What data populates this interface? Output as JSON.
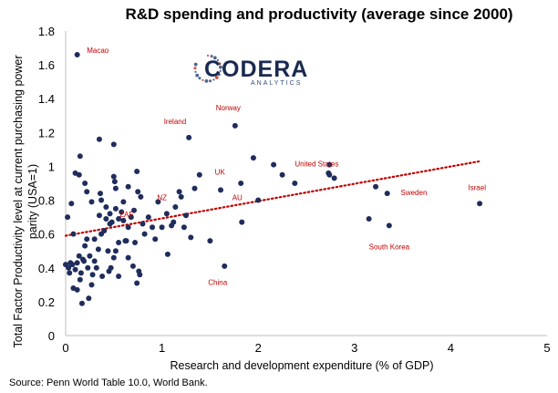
{
  "title": "R&D spending and productivity (average since 2000)",
  "source": "Source: Penn World Table 10.0, World Bank.",
  "logo": {
    "name": "CODERA",
    "sub": "ANALYTICS",
    "colors": [
      "#c0392b",
      "#2e4a7d",
      "#1a2a4f"
    ]
  },
  "chart_data": {
    "type": "scatter",
    "title": "R&D spending and productivity (average since 2000)",
    "xlabel": "Research and development expenditure (% of GDP)",
    "ylabel": "Total Factor Productivity level at current purchasing power parity (USA=1)",
    "xlim": [
      0,
      5
    ],
    "ylim": [
      0,
      1.8
    ],
    "xticks": [
      "0",
      "1",
      "2",
      "3",
      "4",
      "5"
    ],
    "yticks": [
      "0",
      "0.2",
      "0.4",
      "0.6",
      "0.8",
      "1",
      "1.2",
      "1.4",
      "1.6",
      "1.8"
    ],
    "grid": false,
    "point_color": "#1f2d5c",
    "trend_color": "#c00000",
    "trendline": {
      "style": "dotted",
      "x": [
        0,
        4.3
      ],
      "y": [
        0.59,
        1.03
      ]
    },
    "annotations": [
      {
        "text": "Macao",
        "x": 0.22,
        "y": 1.67
      },
      {
        "text": "Ireland",
        "x": 1.02,
        "y": 1.25
      },
      {
        "text": "Norway",
        "x": 1.56,
        "y": 1.33
      },
      {
        "text": "United States",
        "x": 2.38,
        "y": 1.0
      },
      {
        "text": "UK",
        "x": 1.55,
        "y": 0.95
      },
      {
        "text": "NZ",
        "x": 0.95,
        "y": 0.8
      },
      {
        "text": "AU",
        "x": 1.73,
        "y": 0.8
      },
      {
        "text": "ZAF",
        "x": 0.56,
        "y": 0.7
      },
      {
        "text": "Israel",
        "x": 4.18,
        "y": 0.86
      },
      {
        "text": "Sweden",
        "x": 3.48,
        "y": 0.83
      },
      {
        "text": "South Korea",
        "x": 3.15,
        "y": 0.51
      },
      {
        "text": "China",
        "x": 1.48,
        "y": 0.3
      }
    ],
    "points": [
      [
        0.12,
        1.66
      ],
      [
        1.28,
        1.17
      ],
      [
        1.76,
        1.24
      ],
      [
        2.74,
        1.01
      ],
      [
        2.73,
        0.96
      ],
      [
        2.74,
        0.95
      ],
      [
        2.79,
        0.93
      ],
      [
        1.61,
        0.86
      ],
      [
        4.3,
        0.78
      ],
      [
        3.34,
        0.84
      ],
      [
        3.22,
        0.88
      ],
      [
        3.15,
        0.69
      ],
      [
        3.36,
        0.65
      ],
      [
        1.65,
        0.41
      ],
      [
        1.83,
        0.67
      ],
      [
        2.0,
        0.8
      ],
      [
        1.82,
        0.9
      ],
      [
        2.16,
        1.01
      ],
      [
        2.38,
        0.9
      ],
      [
        1.95,
        1.05
      ],
      [
        2.25,
        0.95
      ],
      [
        0.1,
        0.96
      ],
      [
        0.14,
        0.95
      ],
      [
        0.15,
        1.06
      ],
      [
        0.2,
        0.9
      ],
      [
        0.22,
        0.85
      ],
      [
        0.27,
        0.79
      ],
      [
        0.35,
        1.16
      ],
      [
        0.36,
        0.84
      ],
      [
        0.37,
        0.8
      ],
      [
        0.42,
        0.76
      ],
      [
        0.46,
        0.72
      ],
      [
        0.5,
        0.94
      ],
      [
        0.51,
        0.91
      ],
      [
        0.52,
        0.87
      ],
      [
        0.52,
        0.75
      ],
      [
        0.5,
        1.13
      ],
      [
        0.55,
        0.69
      ],
      [
        0.58,
        0.73
      ],
      [
        0.62,
        0.56
      ],
      [
        0.65,
        0.64
      ],
      [
        0.68,
        0.7
      ],
      [
        0.71,
        0.74
      ],
      [
        0.74,
        0.97
      ],
      [
        0.75,
        0.85
      ],
      [
        0.78,
        0.82
      ],
      [
        0.8,
        0.66
      ],
      [
        0.82,
        0.6
      ],
      [
        0.86,
        0.7
      ],
      [
        0.9,
        0.64
      ],
      [
        0.93,
        0.57
      ],
      [
        0.96,
        0.79
      ],
      [
        1.0,
        0.64
      ],
      [
        1.05,
        0.72
      ],
      [
        1.1,
        0.65
      ],
      [
        1.12,
        0.67
      ],
      [
        1.14,
        0.76
      ],
      [
        1.18,
        0.85
      ],
      [
        1.2,
        0.82
      ],
      [
        1.23,
        0.64
      ],
      [
        1.25,
        0.71
      ],
      [
        1.3,
        0.58
      ],
      [
        1.34,
        0.87
      ],
      [
        1.39,
        0.95
      ],
      [
        1.5,
        0.56
      ],
      [
        1.06,
        0.48
      ],
      [
        0.0,
        0.42
      ],
      [
        0.02,
        0.7
      ],
      [
        0.03,
        0.4
      ],
      [
        0.04,
        0.37
      ],
      [
        0.05,
        0.43
      ],
      [
        0.06,
        0.78
      ],
      [
        0.07,
        0.42
      ],
      [
        0.08,
        0.6
      ],
      [
        0.08,
        0.28
      ],
      [
        0.1,
        0.39
      ],
      [
        0.12,
        0.27
      ],
      [
        0.12,
        0.43
      ],
      [
        0.14,
        0.47
      ],
      [
        0.15,
        0.33
      ],
      [
        0.16,
        0.37
      ],
      [
        0.17,
        0.19
      ],
      [
        0.18,
        0.45
      ],
      [
        0.19,
        0.44
      ],
      [
        0.2,
        0.53
      ],
      [
        0.22,
        0.57
      ],
      [
        0.23,
        0.4
      ],
      [
        0.24,
        0.22
      ],
      [
        0.25,
        0.47
      ],
      [
        0.27,
        0.3
      ],
      [
        0.28,
        0.36
      ],
      [
        0.3,
        0.44
      ],
      [
        0.32,
        0.4
      ],
      [
        0.34,
        0.51
      ],
      [
        0.35,
        0.71
      ],
      [
        0.37,
        0.6
      ],
      [
        0.38,
        0.35
      ],
      [
        0.4,
        0.62
      ],
      [
        0.42,
        0.69
      ],
      [
        0.44,
        0.5
      ],
      [
        0.46,
        0.66
      ],
      [
        0.47,
        0.4
      ],
      [
        0.48,
        0.67
      ],
      [
        0.5,
        0.46
      ],
      [
        0.52,
        0.5
      ],
      [
        0.55,
        0.35
      ],
      [
        0.55,
        0.55
      ],
      [
        0.6,
        0.68
      ],
      [
        0.63,
        0.56
      ],
      [
        0.65,
        0.46
      ],
      [
        0.7,
        0.41
      ],
      [
        0.72,
        0.55
      ],
      [
        0.74,
        0.31
      ],
      [
        0.76,
        0.38
      ],
      [
        0.77,
        0.36
      ],
      [
        0.45,
        0.38
      ],
      [
        0.3,
        0.57
      ],
      [
        0.6,
        0.79
      ],
      [
        0.65,
        0.88
      ]
    ]
  }
}
